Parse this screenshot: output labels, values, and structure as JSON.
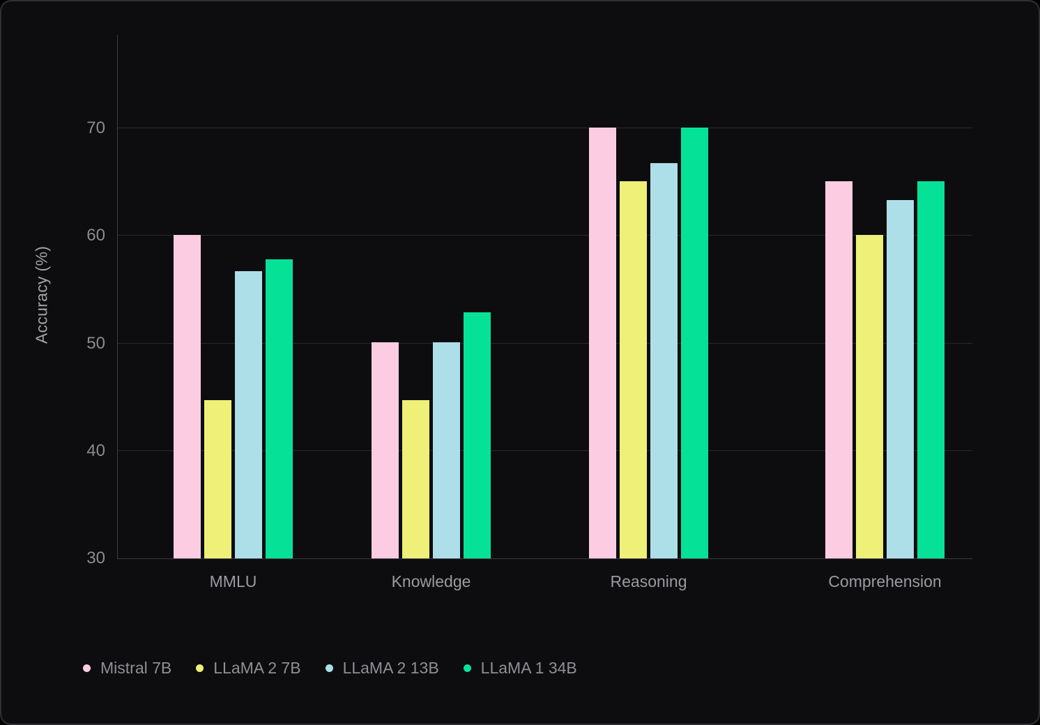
{
  "chart_data": {
    "type": "bar",
    "title": "",
    "xlabel": "",
    "ylabel": "Accuracy (%)",
    "categories": [
      "MMLU",
      "Knowledge",
      "Reasoning",
      "Comprehension"
    ],
    "series": [
      {
        "name": "Mistral 7B",
        "color": "#FCCDE2",
        "values": [
          60.1,
          50.1,
          70.1,
          65.1
        ]
      },
      {
        "name": "LLaMA 2 7B",
        "color": "#EEF077",
        "values": [
          44.7,
          44.7,
          65.1,
          60.1
        ]
      },
      {
        "name": "LLaMA 2 13B",
        "color": "#ADDFE9",
        "values": [
          56.7,
          50.1,
          66.8,
          63.3
        ]
      },
      {
        "name": "LLaMA 1 34B",
        "color": "#05E298",
        "values": [
          57.8,
          52.9,
          70.1,
          65.1
        ]
      }
    ],
    "ylim": [
      30,
      78.7
    ],
    "yticks": [
      30,
      40,
      50,
      60,
      70
    ],
    "grid": true,
    "legend_position": "bottom-left",
    "background_color": "#0D0D0F"
  }
}
